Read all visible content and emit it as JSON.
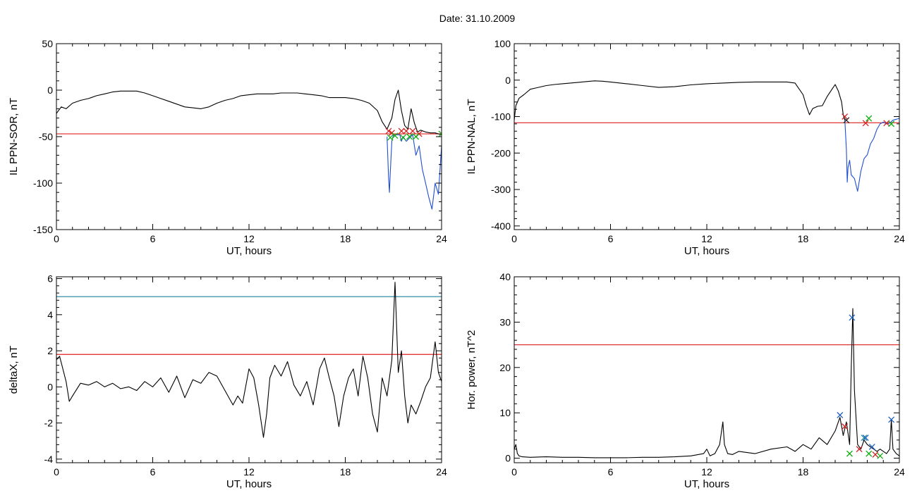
{
  "figure": {
    "title": "Date:  31.10.2009"
  },
  "chart_data": [
    {
      "id": "ppn-sor",
      "type": "line",
      "xlabel": "UT, hours",
      "ylabel": "IL PPN-SOR, nT",
      "xlim": [
        0,
        24
      ],
      "ylim": [
        -150,
        50
      ],
      "xticks": [
        0,
        6,
        12,
        18,
        24
      ],
      "yticks": [
        -150,
        -100,
        -50,
        0,
        50
      ],
      "grid": false,
      "colors": {
        "main": "#000000",
        "below": "#1f4fd0",
        "threshold": "#e02020",
        "marker_red": "#d02020",
        "marker_green": "#10b010"
      },
      "hlines": [
        {
          "y": -47,
          "color": "#e02020"
        }
      ],
      "series": [
        {
          "color": "#000000",
          "x": [
            0,
            0.3,
            0.6,
            1,
            1.5,
            2,
            2.5,
            3,
            3.5,
            4,
            4.5,
            5,
            5.5,
            6,
            6.5,
            7,
            7.5,
            8,
            8.5,
            9,
            9.5,
            10,
            10.5,
            11,
            11.5,
            12,
            12.5,
            13,
            13.5,
            14,
            14.5,
            15,
            15.5,
            16,
            16.5,
            17,
            17.5,
            18,
            18.5,
            19,
            19.5,
            20,
            20.3,
            20.6,
            20.9,
            21.1,
            21.3,
            21.5,
            21.7,
            21.9,
            22.1,
            22.3,
            22.5,
            22.7,
            23,
            23.3,
            23.6,
            24
          ],
          "y": [
            -25,
            -18,
            -20,
            -14,
            -11,
            -9,
            -6,
            -4,
            -2,
            -1,
            -1,
            -1,
            -3,
            -6,
            -9,
            -12,
            -15,
            -18,
            -19,
            -20,
            -18,
            -14,
            -11,
            -9,
            -6,
            -5,
            -4,
            -4,
            -4,
            -3,
            -3,
            -3,
            -4,
            -5,
            -6,
            -8,
            -8,
            -8,
            -9,
            -11,
            -14,
            -22,
            -34,
            -42,
            -30,
            -10,
            0,
            -22,
            -38,
            -42,
            -20,
            -35,
            -45,
            -43,
            -45,
            -46,
            -46,
            -48
          ]
        },
        {
          "color": "#1f4fd0",
          "x": [
            20.6,
            20.7,
            20.75,
            20.8,
            20.9,
            21.0,
            21.4,
            21.5,
            21.6,
            21.8,
            22.2,
            22.4,
            22.6,
            22.8,
            23.0,
            23.2,
            23.4,
            23.6,
            23.8,
            24
          ],
          "y": [
            -50,
            -95,
            -110,
            -90,
            -55,
            -48,
            -48,
            -55,
            -50,
            -55,
            -48,
            -70,
            -60,
            -85,
            -100,
            -115,
            -128,
            -100,
            -112,
            -60
          ]
        }
      ],
      "markers": [
        {
          "x": 20.7,
          "y": -44,
          "color": "#d02020"
        },
        {
          "x": 20.9,
          "y": -46,
          "color": "#d02020"
        },
        {
          "x": 21.5,
          "y": -44,
          "color": "#d02020"
        },
        {
          "x": 21.8,
          "y": -44,
          "color": "#d02020"
        },
        {
          "x": 22.2,
          "y": -44,
          "color": "#d02020"
        },
        {
          "x": 22.6,
          "y": -47,
          "color": "#d02020"
        },
        {
          "x": 20.8,
          "y": -51,
          "color": "#10b010"
        },
        {
          "x": 21.1,
          "y": -49,
          "color": "#10b010"
        },
        {
          "x": 21.6,
          "y": -51,
          "color": "#10b010"
        },
        {
          "x": 22.0,
          "y": -50,
          "color": "#10b010"
        },
        {
          "x": 22.4,
          "y": -50,
          "color": "#10b010"
        },
        {
          "x": 24.0,
          "y": -47,
          "color": "#10b010"
        }
      ]
    },
    {
      "id": "ppn-nal",
      "type": "line",
      "xlabel": "UT, hours",
      "ylabel": "IL PPN-NAL, nT",
      "xlim": [
        0,
        24
      ],
      "ylim": [
        -410,
        100
      ],
      "xticks": [
        0,
        6,
        12,
        18,
        24
      ],
      "yticks": [
        -400,
        -300,
        -200,
        -100,
        0,
        100
      ],
      "grid": false,
      "colors": {
        "main": "#000000",
        "below": "#1f4fd0",
        "threshold": "#e02020",
        "marker_red": "#d02020",
        "marker_green": "#10b010"
      },
      "hlines": [
        {
          "y": -117,
          "color": "#e02020"
        }
      ],
      "series": [
        {
          "color": "#000000",
          "x": [
            0,
            0.1,
            0.3,
            0.6,
            1,
            1.5,
            2,
            2.5,
            3,
            3.5,
            4,
            4.5,
            5,
            5.5,
            6,
            7,
            8,
            9,
            10,
            11,
            12,
            13,
            14,
            15,
            16,
            17,
            17.5,
            18,
            18.2,
            18.4,
            18.6,
            18.9,
            19.2,
            19.5,
            19.8,
            20.0,
            20.2,
            20.4,
            20.5,
            20.6
          ],
          "y": [
            -110,
            -70,
            -50,
            -40,
            -25,
            -20,
            -15,
            -12,
            -10,
            -8,
            -6,
            -4,
            -2,
            -3,
            -5,
            -10,
            -15,
            -20,
            -18,
            -13,
            -10,
            -8,
            -6,
            -5,
            -5,
            -5,
            -8,
            -40,
            -70,
            -95,
            -78,
            -72,
            -70,
            -45,
            -25,
            -12,
            -30,
            -60,
            -95,
            -110
          ]
        },
        {
          "color": "#1f4fd0",
          "x": [
            20.6,
            20.7,
            20.75,
            20.8,
            20.9,
            21.0,
            21.2,
            21.4,
            21.6,
            21.8,
            22.0,
            22.2,
            22.4,
            22.6,
            22.8,
            23.0,
            23.2,
            23.4,
            23.6,
            24
          ],
          "y": [
            -110,
            -190,
            -280,
            -240,
            -220,
            -260,
            -270,
            -305,
            -250,
            -215,
            -205,
            -175,
            -160,
            -135,
            -120,
            -115,
            -120,
            -118,
            -110,
            -105
          ]
        }
      ],
      "markers": [
        {
          "x": 20.6,
          "y": -100,
          "color": "#d02020"
        },
        {
          "x": 20.7,
          "y": -110,
          "color": "#222222"
        },
        {
          "x": 21.9,
          "y": -118,
          "color": "#d02020"
        },
        {
          "x": 22.1,
          "y": -105,
          "color": "#10b010"
        },
        {
          "x": 23.2,
          "y": -118,
          "color": "#d02020"
        },
        {
          "x": 23.5,
          "y": -120,
          "color": "#10b010"
        }
      ]
    },
    {
      "id": "deltax",
      "type": "line",
      "xlabel": "UT, hours",
      "ylabel": "deltaX, nT",
      "xlim": [
        0,
        24
      ],
      "ylim": [
        -4.2,
        6.1
      ],
      "xticks": [
        0,
        6,
        12,
        18,
        24
      ],
      "yticks": [
        -4,
        -2,
        0,
        2,
        4,
        6
      ],
      "grid": false,
      "colors": {
        "main": "#000000",
        "upper": "#1f7fa0",
        "threshold": "#e02020"
      },
      "hlines": [
        {
          "y": 5.0,
          "color": "#1f7fa0"
        },
        {
          "y": 1.8,
          "color": "#e02020"
        }
      ],
      "series": [
        {
          "color": "#000000",
          "x": [
            0,
            0.2,
            0.4,
            0.6,
            0.8,
            1,
            1.5,
            2,
            2.5,
            3,
            3.5,
            4,
            4.5,
            5,
            5.5,
            6,
            6.5,
            7,
            7.5,
            8,
            8.5,
            9,
            9.5,
            10,
            10.5,
            11,
            11.3,
            11.6,
            12,
            12.3,
            12.6,
            12.9,
            13.1,
            13.3,
            13.6,
            14,
            14.4,
            14.8,
            15.2,
            15.6,
            16,
            16.4,
            16.7,
            17,
            17.3,
            17.6,
            17.9,
            18.2,
            18.5,
            18.8,
            19.1,
            19.4,
            19.7,
            20,
            20.3,
            20.6,
            20.9,
            21.1,
            21.3,
            21.5,
            21.7,
            21.9,
            22.1,
            22.4,
            22.7,
            23,
            23.3,
            23.6,
            23.8,
            24
          ],
          "y": [
            1.5,
            1.7,
            1.0,
            0.3,
            -0.8,
            -0.5,
            0.2,
            0.1,
            0.3,
            0.0,
            0.2,
            -0.1,
            0.0,
            -0.2,
            0.3,
            0.0,
            0.5,
            -0.3,
            0.6,
            -0.6,
            0.4,
            0.2,
            0.8,
            0.6,
            -0.2,
            -1.0,
            -0.5,
            -0.9,
            1.0,
            0.5,
            -1.0,
            -2.8,
            -1.5,
            0.5,
            1.2,
            0.6,
            1.4,
            0.1,
            -0.5,
            0.3,
            -1.0,
            1.0,
            1.6,
            0.5,
            -0.5,
            -2.2,
            -0.5,
            0.5,
            1.0,
            -0.5,
            1.7,
            0.5,
            -1.5,
            -2.5,
            0.5,
            -0.5,
            1.5,
            5.8,
            0.8,
            2.0,
            -0.5,
            -2.0,
            -1.0,
            -1.5,
            -0.8,
            0.0,
            0.5,
            2.5,
            0.8,
            0.3
          ]
        }
      ],
      "markers": []
    },
    {
      "id": "hor-power",
      "type": "line",
      "xlabel": "UT, hours",
      "ylabel": "Hor. power, nT^2",
      "xlim": [
        0,
        24
      ],
      "ylim": [
        -1,
        40
      ],
      "xticks": [
        0,
        6,
        12,
        18,
        24
      ],
      "yticks": [
        0,
        10,
        20,
        30,
        40
      ],
      "grid": false,
      "colors": {
        "main": "#000000",
        "threshold": "#e02020",
        "marker_blue": "#2060c0",
        "marker_red": "#d02020",
        "marker_green": "#10b010",
        "marker_teal": "#1f8f8f"
      },
      "hlines": [
        {
          "y": 25,
          "color": "#e02020"
        }
      ],
      "series": [
        {
          "color": "#000000",
          "x": [
            0,
            0.1,
            0.2,
            0.3,
            0.5,
            1,
            2,
            3,
            4,
            5,
            6,
            7,
            8,
            9,
            10,
            11,
            11.8,
            12,
            12.2,
            12.5,
            12.8,
            13.0,
            13.1,
            13.3,
            13.6,
            14,
            15,
            16,
            17,
            17.5,
            18,
            18.5,
            19,
            19.5,
            20,
            20.3,
            20.5,
            20.7,
            20.9,
            21.0,
            21.1,
            21.2,
            21.4,
            21.6,
            21.8,
            22.0,
            22.2,
            22.4,
            22.6,
            22.8,
            23.0,
            23.2,
            23.4,
            23.5,
            23.6,
            23.8,
            24
          ],
          "y": [
            2,
            3,
            1,
            0.5,
            0.3,
            0.2,
            0.3,
            0.2,
            0.2,
            0.1,
            0.1,
            0.1,
            0.2,
            0.2,
            0.3,
            0.5,
            1.0,
            2.0,
            0.5,
            1.0,
            3.0,
            8.0,
            3.0,
            1.0,
            0.8,
            1.5,
            1.0,
            2.0,
            2.5,
            1.5,
            3.0,
            2.0,
            4.5,
            3.0,
            6.0,
            9.0,
            5.0,
            8.0,
            3.0,
            20.0,
            33.0,
            15.0,
            3.0,
            2.0,
            4.0,
            3.0,
            2.5,
            2.0,
            1.5,
            2.0,
            1.5,
            1.0,
            2.0,
            8.5,
            2.0,
            1.0,
            0.5
          ]
        }
      ],
      "markers": [
        {
          "x": 20.3,
          "y": 9.5,
          "color": "#2060c0"
        },
        {
          "x": 20.6,
          "y": 7.0,
          "color": "#d02020"
        },
        {
          "x": 21.05,
          "y": 31.0,
          "color": "#2060c0"
        },
        {
          "x": 20.9,
          "y": 1.0,
          "color": "#10b010"
        },
        {
          "x": 21.5,
          "y": 2.0,
          "color": "#d02020"
        },
        {
          "x": 21.8,
          "y": 4.5,
          "color": "#1f8f8f"
        },
        {
          "x": 21.9,
          "y": 4.5,
          "color": "#2060c0"
        },
        {
          "x": 22.1,
          "y": 1.0,
          "color": "#10b010"
        },
        {
          "x": 22.3,
          "y": 2.5,
          "color": "#2060c0"
        },
        {
          "x": 22.5,
          "y": 0.8,
          "color": "#d02020"
        },
        {
          "x": 22.8,
          "y": 0.5,
          "color": "#10b010"
        },
        {
          "x": 23.5,
          "y": 8.5,
          "color": "#2060c0"
        }
      ]
    }
  ]
}
